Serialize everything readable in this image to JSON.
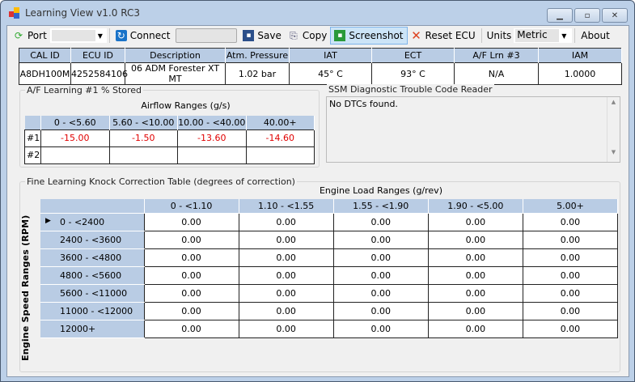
{
  "window": {
    "title": "Learning View v1.0 RC3",
    "controls": [
      "minimize",
      "maximize",
      "close"
    ]
  },
  "toolbar": {
    "port_label": "Port",
    "port_value": "",
    "connect_label": "Connect",
    "connect_status": "",
    "save_label": "Save",
    "copy_label": "Copy",
    "screenshot_label": "Screenshot",
    "reset_label": "Reset ECU",
    "units_label": "Units",
    "units_value": "Metric",
    "about_label": "About"
  },
  "info": {
    "headers": [
      "CAL ID",
      "ECU ID",
      "Description",
      "Atm. Pressure",
      "IAT",
      "ECT",
      "A/F Lrn #3",
      "IAM"
    ],
    "values": [
      "A8DH100M",
      "4252584106",
      "06 ADM Forester XT MT",
      "1.02 bar",
      "45° C",
      "93° C",
      "N/A",
      "1.0000"
    ]
  },
  "af": {
    "title": "A/F Learning #1 % Stored",
    "subtitle": "Airflow Ranges (g/s)",
    "columns": [
      "0 - <5.60",
      "5.60 - <10.00",
      "10.00 - <40.00",
      "40.00+"
    ],
    "rows": [
      {
        "label": "#1",
        "values": [
          "-15.00",
          "-1.50",
          "-13.60",
          "-14.60"
        ]
      },
      {
        "label": "#2",
        "values": [
          "",
          "",
          "",
          ""
        ]
      }
    ]
  },
  "dtc": {
    "title": "SSM Diagnostic Trouble Code Reader",
    "text": "No DTCs found."
  },
  "knock": {
    "title": "Fine Learning Knock Correction Table (degrees of correction)",
    "col_title": "Engine Load Ranges (g/rev)",
    "row_title": "Engine Speed Ranges (RPM)",
    "columns": [
      "0 - <1.10",
      "1.10 - <1.55",
      "1.55 - <1.90",
      "1.90 - <5.00",
      "5.00+"
    ],
    "rows": [
      {
        "label": "0 - <2400",
        "values": [
          "0.00",
          "0.00",
          "0.00",
          "0.00",
          "0.00"
        ]
      },
      {
        "label": "2400 - <3600",
        "values": [
          "0.00",
          "0.00",
          "0.00",
          "0.00",
          "0.00"
        ]
      },
      {
        "label": "3600 - <4800",
        "values": [
          "0.00",
          "0.00",
          "0.00",
          "0.00",
          "0.00"
        ]
      },
      {
        "label": "4800 - <5600",
        "values": [
          "0.00",
          "0.00",
          "0.00",
          "0.00",
          "0.00"
        ]
      },
      {
        "label": "5600 - <11000",
        "values": [
          "0.00",
          "0.00",
          "0.00",
          "0.00",
          "0.00"
        ]
      },
      {
        "label": "11000 - <12000",
        "values": [
          "0.00",
          "0.00",
          "0.00",
          "0.00",
          "0.00"
        ]
      },
      {
        "label": "12000+",
        "values": [
          "0.00",
          "0.00",
          "0.00",
          "0.00",
          "0.00"
        ]
      }
    ]
  },
  "colors": {
    "negative": "#e00000",
    "header": "#b9cce4",
    "selected_tool": "#cce4f7"
  }
}
